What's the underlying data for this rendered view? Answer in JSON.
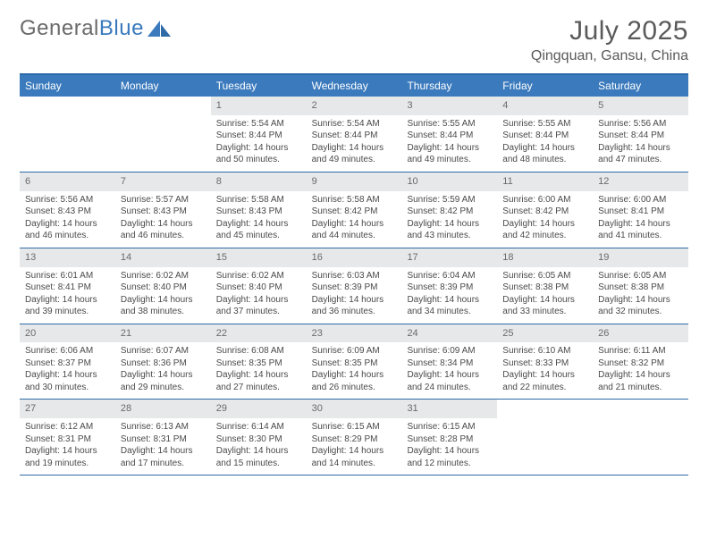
{
  "brand": {
    "part1": "General",
    "part2": "Blue"
  },
  "title": "July 2025",
  "location": "Qingquan, Gansu, China",
  "colors": {
    "accent": "#3a7abd",
    "accent_dark": "#2f6aa8",
    "day_header_bg": "#e6e8ea",
    "text": "#4a4a4a",
    "muted": "#6a6a6a",
    "background": "#ffffff"
  },
  "dow": [
    "Sunday",
    "Monday",
    "Tuesday",
    "Wednesday",
    "Thursday",
    "Friday",
    "Saturday"
  ],
  "weeks": [
    [
      null,
      null,
      {
        "n": "1",
        "sr": "5:54 AM",
        "ss": "8:44 PM",
        "dl": "14 hours and 50 minutes."
      },
      {
        "n": "2",
        "sr": "5:54 AM",
        "ss": "8:44 PM",
        "dl": "14 hours and 49 minutes."
      },
      {
        "n": "3",
        "sr": "5:55 AM",
        "ss": "8:44 PM",
        "dl": "14 hours and 49 minutes."
      },
      {
        "n": "4",
        "sr": "5:55 AM",
        "ss": "8:44 PM",
        "dl": "14 hours and 48 minutes."
      },
      {
        "n": "5",
        "sr": "5:56 AM",
        "ss": "8:44 PM",
        "dl": "14 hours and 47 minutes."
      }
    ],
    [
      {
        "n": "6",
        "sr": "5:56 AM",
        "ss": "8:43 PM",
        "dl": "14 hours and 46 minutes."
      },
      {
        "n": "7",
        "sr": "5:57 AM",
        "ss": "8:43 PM",
        "dl": "14 hours and 46 minutes."
      },
      {
        "n": "8",
        "sr": "5:58 AM",
        "ss": "8:43 PM",
        "dl": "14 hours and 45 minutes."
      },
      {
        "n": "9",
        "sr": "5:58 AM",
        "ss": "8:42 PM",
        "dl": "14 hours and 44 minutes."
      },
      {
        "n": "10",
        "sr": "5:59 AM",
        "ss": "8:42 PM",
        "dl": "14 hours and 43 minutes."
      },
      {
        "n": "11",
        "sr": "6:00 AM",
        "ss": "8:42 PM",
        "dl": "14 hours and 42 minutes."
      },
      {
        "n": "12",
        "sr": "6:00 AM",
        "ss": "8:41 PM",
        "dl": "14 hours and 41 minutes."
      }
    ],
    [
      {
        "n": "13",
        "sr": "6:01 AM",
        "ss": "8:41 PM",
        "dl": "14 hours and 39 minutes."
      },
      {
        "n": "14",
        "sr": "6:02 AM",
        "ss": "8:40 PM",
        "dl": "14 hours and 38 minutes."
      },
      {
        "n": "15",
        "sr": "6:02 AM",
        "ss": "8:40 PM",
        "dl": "14 hours and 37 minutes."
      },
      {
        "n": "16",
        "sr": "6:03 AM",
        "ss": "8:39 PM",
        "dl": "14 hours and 36 minutes."
      },
      {
        "n": "17",
        "sr": "6:04 AM",
        "ss": "8:39 PM",
        "dl": "14 hours and 34 minutes."
      },
      {
        "n": "18",
        "sr": "6:05 AM",
        "ss": "8:38 PM",
        "dl": "14 hours and 33 minutes."
      },
      {
        "n": "19",
        "sr": "6:05 AM",
        "ss": "8:38 PM",
        "dl": "14 hours and 32 minutes."
      }
    ],
    [
      {
        "n": "20",
        "sr": "6:06 AM",
        "ss": "8:37 PM",
        "dl": "14 hours and 30 minutes."
      },
      {
        "n": "21",
        "sr": "6:07 AM",
        "ss": "8:36 PM",
        "dl": "14 hours and 29 minutes."
      },
      {
        "n": "22",
        "sr": "6:08 AM",
        "ss": "8:35 PM",
        "dl": "14 hours and 27 minutes."
      },
      {
        "n": "23",
        "sr": "6:09 AM",
        "ss": "8:35 PM",
        "dl": "14 hours and 26 minutes."
      },
      {
        "n": "24",
        "sr": "6:09 AM",
        "ss": "8:34 PM",
        "dl": "14 hours and 24 minutes."
      },
      {
        "n": "25",
        "sr": "6:10 AM",
        "ss": "8:33 PM",
        "dl": "14 hours and 22 minutes."
      },
      {
        "n": "26",
        "sr": "6:11 AM",
        "ss": "8:32 PM",
        "dl": "14 hours and 21 minutes."
      }
    ],
    [
      {
        "n": "27",
        "sr": "6:12 AM",
        "ss": "8:31 PM",
        "dl": "14 hours and 19 minutes."
      },
      {
        "n": "28",
        "sr": "6:13 AM",
        "ss": "8:31 PM",
        "dl": "14 hours and 17 minutes."
      },
      {
        "n": "29",
        "sr": "6:14 AM",
        "ss": "8:30 PM",
        "dl": "14 hours and 15 minutes."
      },
      {
        "n": "30",
        "sr": "6:15 AM",
        "ss": "8:29 PM",
        "dl": "14 hours and 14 minutes."
      },
      {
        "n": "31",
        "sr": "6:15 AM",
        "ss": "8:28 PM",
        "dl": "14 hours and 12 minutes."
      },
      null,
      null
    ]
  ],
  "labels": {
    "sunrise": "Sunrise:",
    "sunset": "Sunset:",
    "daylight": "Daylight:"
  }
}
